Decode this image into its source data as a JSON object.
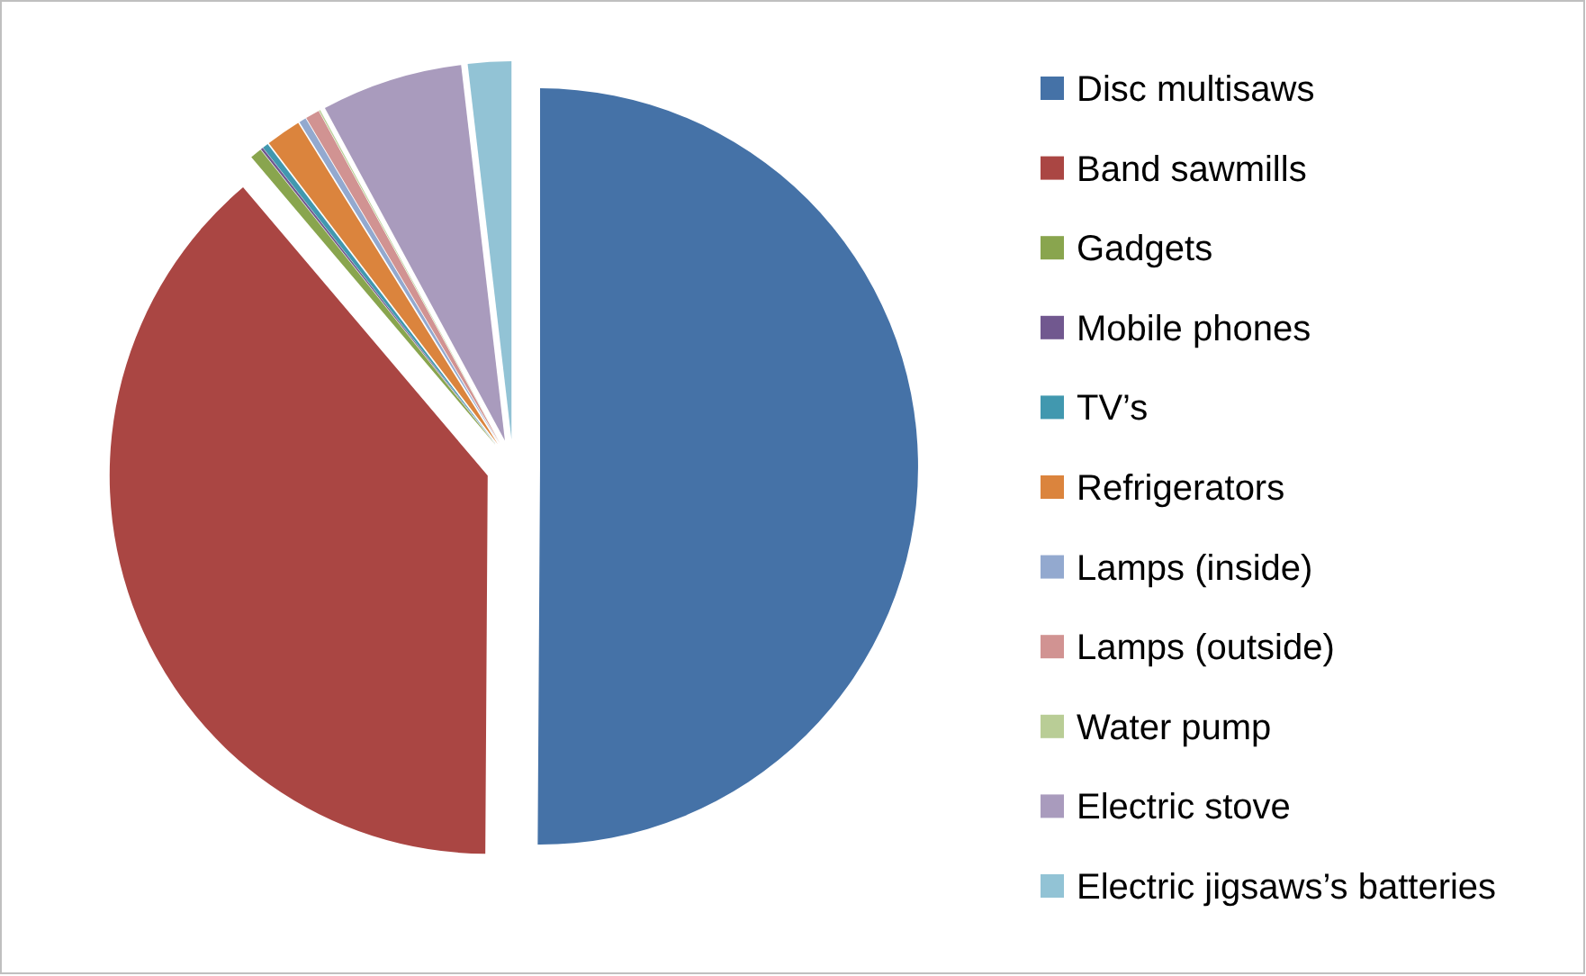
{
  "chart_data": {
    "type": "pie",
    "categories": [
      "Disc multisaws",
      "Band sawmills",
      "Gadgets",
      "Mobile phones",
      "TV’s",
      "Refrigerators",
      "Lamps (inside)",
      "Lamps (outside)",
      "Water pump",
      "Electric stove",
      "Electric jigsaws’s batteries"
    ],
    "values": [
      50.1,
      38.7,
      0.5,
      0.1,
      0.25,
      1.5,
      0.3,
      0.6,
      0.05,
      6.05,
      1.85
    ],
    "colors": [
      "#4572a7",
      "#aa4643",
      "#89a54e",
      "#71588f",
      "#4198af",
      "#db843d",
      "#93a9cf",
      "#d19392",
      "#b9cd96",
      "#a99bbd",
      "#92c3d5"
    ],
    "legend": "right"
  }
}
